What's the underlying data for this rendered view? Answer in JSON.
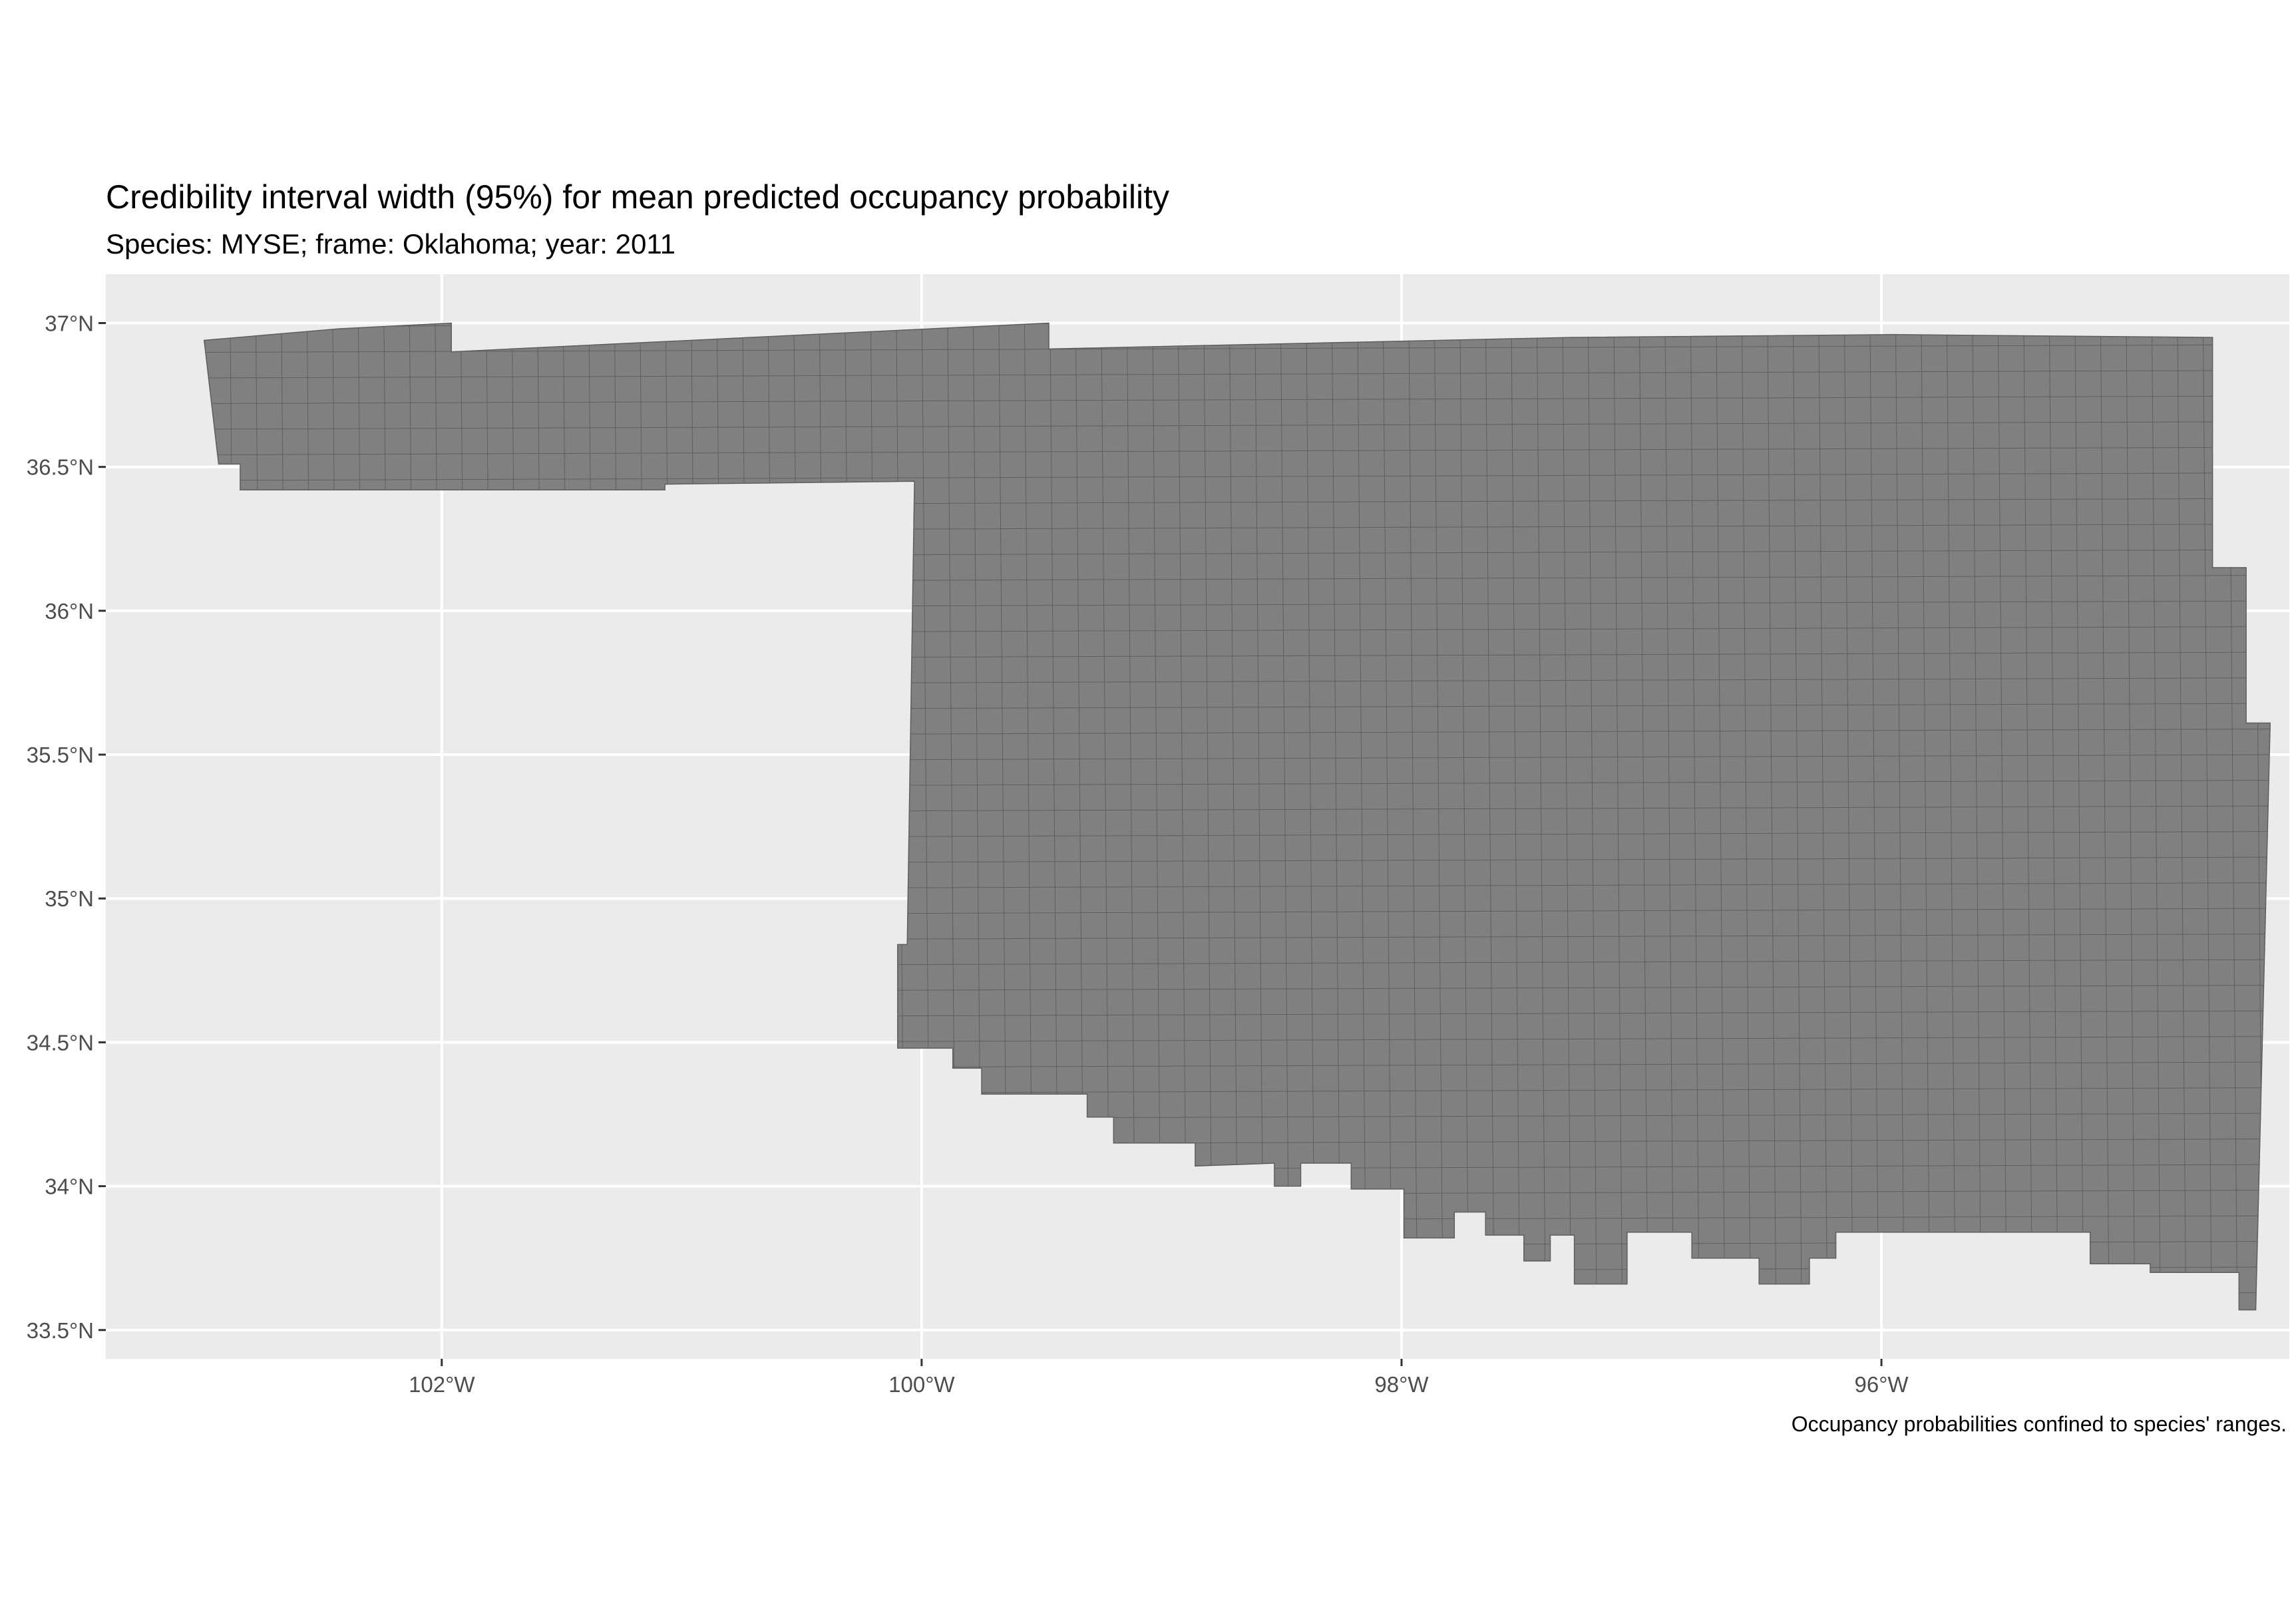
{
  "title": "Credibility interval width (95%) for mean predicted occupancy probability",
  "subtitle": "Species: MYSE; frame: Oklahoma; year: 2011",
  "caption": "Occupancy probabilities confined to species' ranges.",
  "colors": {
    "panel_background": "#ebebeb",
    "grid": "#ffffff",
    "cell_fill": "#808080",
    "cell_border": "#5e5e5e"
  },
  "chart_data": {
    "type": "heatmap",
    "map_region": "Oklahoma",
    "cell_values": "uniform (single grey fill, no legend)",
    "x_axis": {
      "ticks": [
        -102,
        -100,
        -98,
        -96
      ],
      "tick_labels": [
        "102°W",
        "100°W",
        "98°W",
        "96°W"
      ],
      "range": [
        -103.4,
        -94.3
      ]
    },
    "y_axis": {
      "ticks": [
        37,
        36.5,
        36,
        35.5,
        35,
        34.5,
        34,
        33.5
      ],
      "tick_labels": [
        "37°N",
        "36.5°N",
        "36°N",
        "35.5°N",
        "35°N",
        "34.5°N",
        "34°N",
        "33.5°N"
      ],
      "range": [
        33.4,
        37.17
      ]
    },
    "grid": true,
    "legend": "none",
    "state_outline": [
      [
        -102.99,
        36.94
      ],
      [
        -102.43,
        36.98
      ],
      [
        -101.96,
        37.0
      ],
      [
        -101.96,
        36.9
      ],
      [
        -99.47,
        37.0
      ],
      [
        -99.47,
        36.91
      ],
      [
        -97.3,
        36.95
      ],
      [
        -95.95,
        36.96
      ],
      [
        -94.62,
        36.95
      ],
      [
        -94.62,
        36.15
      ],
      [
        -94.48,
        36.15
      ],
      [
        -94.48,
        35.61
      ],
      [
        -94.38,
        35.61
      ],
      [
        -94.44,
        33.57
      ],
      [
        -94.51,
        33.57
      ],
      [
        -94.51,
        33.7
      ],
      [
        -94.88,
        33.7
      ],
      [
        -94.88,
        33.73
      ],
      [
        -95.13,
        33.73
      ],
      [
        -95.13,
        33.84
      ],
      [
        -96.19,
        33.84
      ],
      [
        -96.19,
        33.75
      ],
      [
        -96.3,
        33.75
      ],
      [
        -96.3,
        33.66
      ],
      [
        -96.51,
        33.66
      ],
      [
        -96.51,
        33.75
      ],
      [
        -96.79,
        33.75
      ],
      [
        -96.79,
        33.84
      ],
      [
        -97.06,
        33.84
      ],
      [
        -97.06,
        33.66
      ],
      [
        -97.28,
        33.66
      ],
      [
        -97.28,
        33.83
      ],
      [
        -97.38,
        33.83
      ],
      [
        -97.38,
        33.74
      ],
      [
        -97.49,
        33.74
      ],
      [
        -97.49,
        33.83
      ],
      [
        -97.65,
        33.83
      ],
      [
        -97.65,
        33.91
      ],
      [
        -97.78,
        33.91
      ],
      [
        -97.78,
        33.82
      ],
      [
        -97.99,
        33.82
      ],
      [
        -97.99,
        33.99
      ],
      [
        -98.21,
        33.99
      ],
      [
        -98.21,
        34.08
      ],
      [
        -98.42,
        34.08
      ],
      [
        -98.42,
        34.0
      ],
      [
        -98.53,
        34.0
      ],
      [
        -98.53,
        34.08
      ],
      [
        -98.86,
        34.07
      ],
      [
        -98.86,
        34.15
      ],
      [
        -99.2,
        34.15
      ],
      [
        -99.2,
        34.24
      ],
      [
        -99.31,
        34.24
      ],
      [
        -99.31,
        34.32
      ],
      [
        -99.75,
        34.32
      ],
      [
        -99.75,
        34.41
      ],
      [
        -99.87,
        34.41
      ],
      [
        -99.87,
        34.48
      ],
      [
        -100.1,
        34.48
      ],
      [
        -100.1,
        34.84
      ],
      [
        -100.06,
        34.84
      ],
      [
        -100.03,
        36.45
      ],
      [
        -101.07,
        36.44
      ],
      [
        -101.07,
        36.42
      ],
      [
        -102.84,
        36.42
      ],
      [
        -102.84,
        36.51
      ],
      [
        -102.93,
        36.51
      ]
    ]
  }
}
